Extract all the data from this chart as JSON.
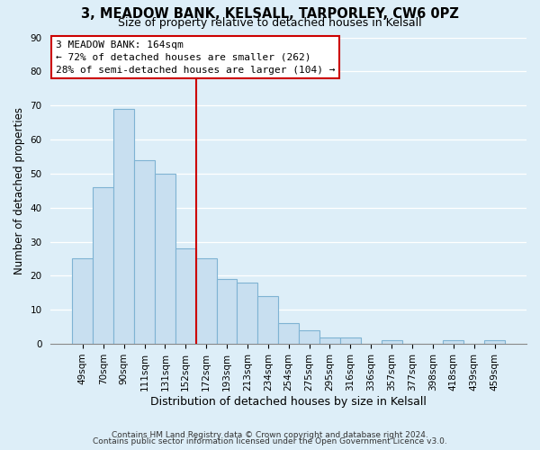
{
  "title1": "3, MEADOW BANK, KELSALL, TARPORLEY, CW6 0PZ",
  "title2": "Size of property relative to detached houses in Kelsall",
  "xlabel": "Distribution of detached houses by size in Kelsall",
  "ylabel": "Number of detached properties",
  "bar_labels": [
    "49sqm",
    "70sqm",
    "90sqm",
    "111sqm",
    "131sqm",
    "152sqm",
    "172sqm",
    "193sqm",
    "213sqm",
    "234sqm",
    "254sqm",
    "275sqm",
    "295sqm",
    "316sqm",
    "336sqm",
    "357sqm",
    "377sqm",
    "398sqm",
    "418sqm",
    "439sqm",
    "459sqm"
  ],
  "bar_values": [
    25,
    46,
    69,
    54,
    50,
    28,
    25,
    19,
    18,
    14,
    6,
    4,
    2,
    2,
    0,
    1,
    0,
    0,
    1,
    0,
    1
  ],
  "bar_color": "#c8dff0",
  "bar_edge_color": "#7fb3d3",
  "vline_x": 5.5,
  "vline_color": "#cc0000",
  "annotation_title": "3 MEADOW BANK: 164sqm",
  "annotation_line1": "← 72% of detached houses are smaller (262)",
  "annotation_line2": "28% of semi-detached houses are larger (104) →",
  "annotation_box_edge": "#cc0000",
  "ylim": [
    0,
    90
  ],
  "yticks": [
    0,
    10,
    20,
    30,
    40,
    50,
    60,
    70,
    80,
    90
  ],
  "footer1": "Contains HM Land Registry data © Crown copyright and database right 2024.",
  "footer2": "Contains public sector information licensed under the Open Government Licence v3.0.",
  "bg_color": "#ddeef8",
  "plot_bg_color": "#ddeef8",
  "grid_color": "#ffffff",
  "title1_fontsize": 10.5,
  "title2_fontsize": 9.0,
  "ylabel_fontsize": 8.5,
  "xlabel_fontsize": 9.0,
  "tick_fontsize": 7.5,
  "ann_fontsize": 8.0,
  "footer_fontsize": 6.5
}
